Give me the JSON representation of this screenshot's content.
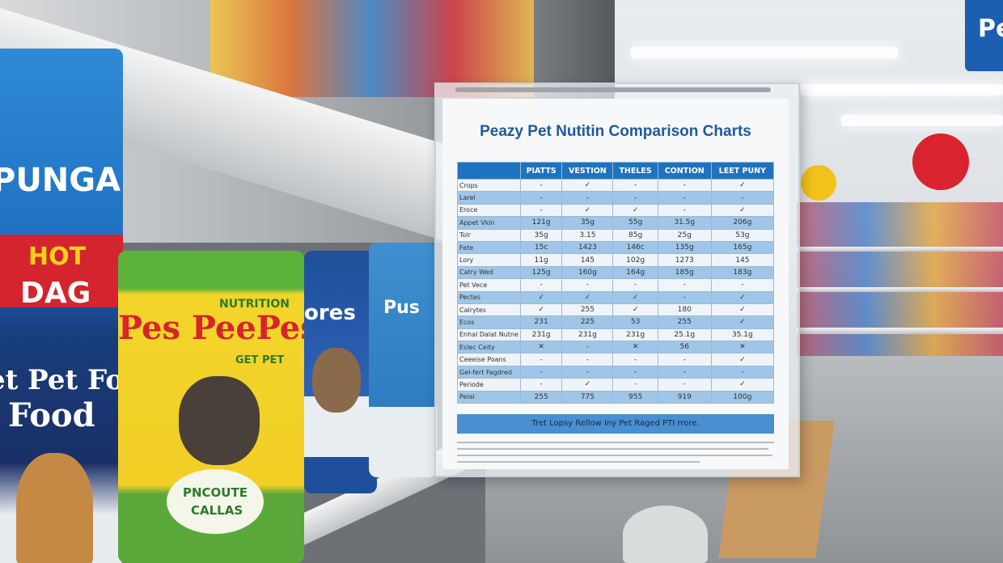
{
  "sign": {
    "title": "Peazy Pet Nutitin Comparison Charts",
    "table": {
      "headers": [
        "PIATTS",
        "VESTION",
        "THELES",
        "CONTION",
        "LEET PUNY"
      ],
      "rows": [
        {
          "label": "Crops",
          "cells": [
            "-",
            "✓",
            "-",
            "-",
            "✓"
          ]
        },
        {
          "label": "Larel",
          "cells": [
            "-",
            "-",
            "-",
            "-",
            "-"
          ]
        },
        {
          "label": "Eroce",
          "cells": [
            "-",
            "✓",
            "✓",
            "-",
            "✓"
          ]
        },
        {
          "label": "Appet Vkin",
          "cells": [
            "121g",
            "35g",
            "55g",
            "31.5g",
            "206g"
          ]
        },
        {
          "label": "Tolr",
          "cells": [
            "35g",
            "3.15",
            "85g",
            "25g",
            "53g"
          ]
        },
        {
          "label": "Fete",
          "cells": [
            "15c",
            "1423",
            "146c",
            "135g",
            "165g"
          ]
        },
        {
          "label": "Lory",
          "cells": [
            "11g",
            "145",
            "102g",
            "1273",
            "145"
          ]
        },
        {
          "label": "Catry Wed",
          "cells": [
            "125g",
            "160g",
            "164g",
            "185g",
            "183g"
          ]
        },
        {
          "label": "Pet Vece",
          "cells": [
            "-",
            "-",
            "-",
            "-",
            "-"
          ]
        },
        {
          "label": "Pectes",
          "cells": [
            "✓",
            "✓",
            "✓",
            "-",
            "✓"
          ]
        },
        {
          "label": "Calrytes",
          "cells": [
            "✓",
            "255",
            "✓",
            "180",
            "✓"
          ]
        },
        {
          "label": "Ecos",
          "cells": [
            "231",
            "225",
            "53",
            "255",
            "✓"
          ]
        },
        {
          "label": "Enhal Dalat Nutne",
          "cells": [
            "231g",
            "231g",
            "231g",
            "25.1g",
            "35.1g"
          ]
        },
        {
          "label": "Eslec Ceity",
          "cells": [
            "✕",
            "-",
            "✕",
            "56",
            "✕"
          ]
        },
        {
          "label": "Ceeeise Poans",
          "cells": [
            "-",
            "-",
            "-",
            "-",
            "✓"
          ]
        },
        {
          "label": "Gel-fert Fagdred",
          "cells": [
            "-",
            "-",
            "-",
            "-",
            "-"
          ]
        },
        {
          "label": "Periode",
          "cells": [
            "-",
            "✓",
            "-",
            "-",
            "✓"
          ]
        },
        {
          "label": "Pelal",
          "cells": [
            "255",
            "775",
            "955",
            "919",
            "100g"
          ]
        }
      ]
    },
    "footer": "Tret Lopsy Rellow Iny Pet Raged PTI rrore."
  },
  "packages": {
    "punga": "PUNGA",
    "hot": "HOT",
    "dag": "DAG",
    "petfood": "et Pet Fo",
    "food": "Food",
    "nutrition": "NUTRITION",
    "brand": "Pes PeePes",
    "getpet": "GET PET",
    "ores": "ores",
    "pus": "Pus",
    "pncoute": "PNCOUTE",
    "callas": "CALLAS"
  },
  "store_sign": "Pe"
}
